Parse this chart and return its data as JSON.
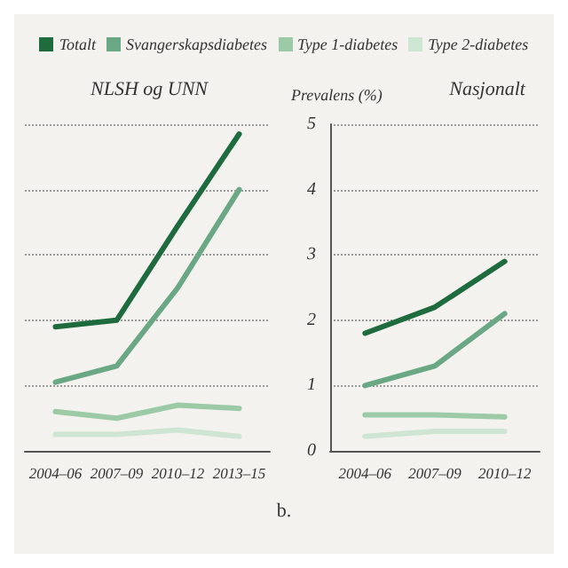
{
  "chart_data": [
    {
      "type": "line",
      "title": "NLSH og UNN",
      "categories": [
        "2004–06",
        "2007–09",
        "2010–12",
        "2013–15"
      ],
      "ylim": [
        0,
        5
      ],
      "yticks": [
        0,
        1,
        2,
        3,
        4,
        5
      ],
      "tick_labels": "x",
      "grid": "y",
      "legend": "top",
      "marker": "none",
      "line_style": "solid",
      "series": [
        {
          "name": "Totalt",
          "color": "#1e6b3e",
          "values": [
            1.9,
            2.0,
            3.45,
            4.85
          ]
        },
        {
          "name": "Svangerskapsdiabetes",
          "color": "#6aa784",
          "values": [
            1.05,
            1.3,
            2.5,
            4.0
          ]
        },
        {
          "name": "Type 1-diabetes",
          "color": "#9cc9a6",
          "values": [
            0.6,
            0.5,
            0.7,
            0.65
          ]
        },
        {
          "name": "Type 2-diabetes",
          "color": "#cfe5d3",
          "values": [
            0.25,
            0.25,
            0.32,
            0.22
          ]
        }
      ]
    },
    {
      "type": "line",
      "title": "Nasjonalt",
      "ylabel": "Prevalens (%)",
      "categories": [
        "2004–06",
        "2007–09",
        "2010–12"
      ],
      "ylim": [
        0,
        5
      ],
      "yticks": [
        0,
        1,
        2,
        3,
        4,
        5
      ],
      "grid": "y",
      "marker": "none",
      "line_style": "solid",
      "annotations": [
        "b."
      ],
      "series": [
        {
          "color": "#1e6b3e",
          "values": [
            1.8,
            2.2,
            2.9
          ]
        },
        {
          "color": "#6aa784",
          "values": [
            1.0,
            1.3,
            2.1
          ]
        },
        {
          "color": "#9cc9a6",
          "values": [
            0.55,
            0.55,
            0.52
          ]
        },
        {
          "color": "#cfe5d3",
          "values": [
            0.22,
            0.3,
            0.3
          ]
        }
      ]
    }
  ]
}
